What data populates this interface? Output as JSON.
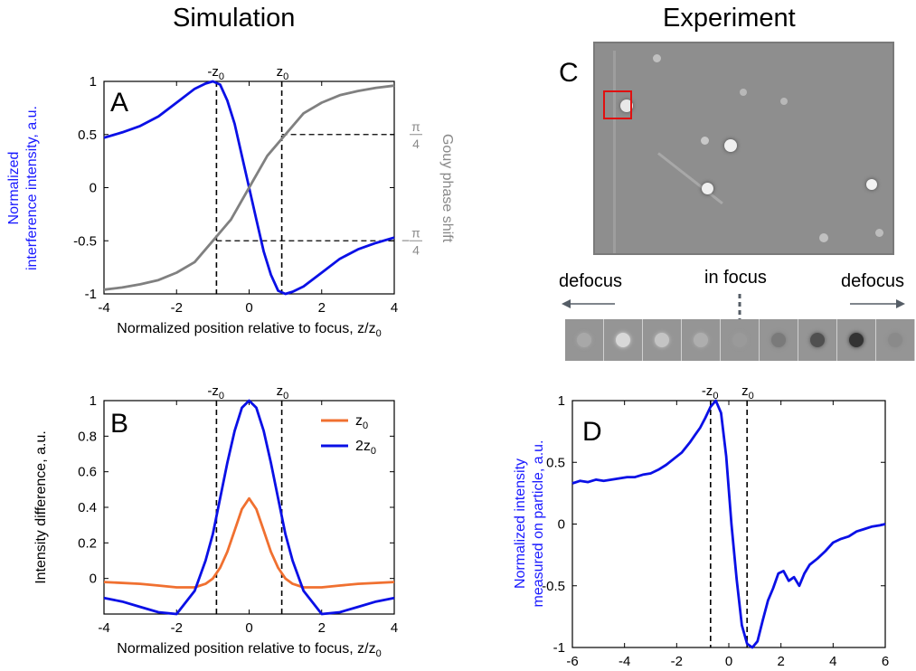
{
  "headings": {
    "simulation": "Simulation",
    "experiment": "Experiment"
  },
  "panels": {
    "a": "A",
    "b": "B",
    "c": "C",
    "d": "D"
  },
  "markers": {
    "neg_z0": "-z",
    "pos_z0": "z",
    "sub0": "0"
  },
  "panel_c": {
    "defocus_left": "defocus",
    "in_focus": "in focus",
    "defocus_right": "defocus",
    "strip_shades": [
      "#a8a8a8",
      "#d8d8d8",
      "#c4c4c4",
      "#aeaeae",
      "#9a9a9a",
      "#7a7a7a",
      "#505050",
      "#333333",
      "#8a8a8a"
    ]
  },
  "chart_data": [
    {
      "panel": "A",
      "type": "line",
      "xlabel": "Normalized position relative to focus, z/z",
      "xlabel_sub": "0",
      "ylabel_line1": "Normalized",
      "ylabel_line2": "interference intensity, a.u.",
      "ylabel_right": "Gouy phase shift",
      "right_ticks": [
        {
          "y": 0.5,
          "num": "π",
          "den": "4",
          "sign": ""
        },
        {
          "y": -0.5,
          "num": "π",
          "den": "4",
          "sign": "−"
        }
      ],
      "xlim": [
        -4,
        4
      ],
      "ylim": [
        -1,
        1
      ],
      "xticks": [
        -4,
        -2,
        0,
        2,
        4
      ],
      "yticks": [
        -1,
        -0.5,
        0,
        0.5,
        1
      ],
      "vlines": [
        -0.9,
        0.9
      ],
      "hlines": [
        {
          "y": 0.5,
          "from": 0.9,
          "to": 4
        },
        {
          "y": -0.5,
          "from": -0.9,
          "to": 4
        }
      ],
      "series": [
        {
          "color": "#0a10e6",
          "x": [
            -4,
            -3.5,
            -3,
            -2.5,
            -2,
            -1.5,
            -1.2,
            -1,
            -0.8,
            -0.6,
            -0.4,
            -0.2,
            0,
            0.2,
            0.4,
            0.6,
            0.8,
            1,
            1.2,
            1.5,
            2,
            2.5,
            3,
            3.5,
            4
          ],
          "y": [
            0.47,
            0.52,
            0.58,
            0.67,
            0.8,
            0.93,
            0.98,
            1.0,
            0.97,
            0.82,
            0.6,
            0.3,
            0.0,
            -0.3,
            -0.6,
            -0.82,
            -0.97,
            -1.0,
            -0.98,
            -0.93,
            -0.8,
            -0.67,
            -0.58,
            -0.52,
            -0.47
          ]
        },
        {
          "color": "#808080",
          "x": [
            -4,
            -3.5,
            -3,
            -2.5,
            -2,
            -1.5,
            -1,
            -0.5,
            0,
            0.5,
            1,
            1.5,
            2,
            2.5,
            3,
            3.5,
            4
          ],
          "y": [
            -0.96,
            -0.94,
            -0.91,
            -0.87,
            -0.8,
            -0.7,
            -0.5,
            -0.3,
            0.0,
            0.3,
            0.5,
            0.7,
            0.8,
            0.87,
            0.91,
            0.94,
            0.96
          ]
        }
      ]
    },
    {
      "panel": "B",
      "type": "line",
      "xlabel": "Normalized position relative to focus, z/z",
      "xlabel_sub": "0",
      "ylabel": "Intensity difference, a.u.",
      "xlim": [
        -4,
        4
      ],
      "ylim": [
        -0.2,
        1
      ],
      "xticks": [
        -4,
        -2,
        0,
        2,
        4
      ],
      "yticks": [
        0,
        0.2,
        0.4,
        0.6,
        0.8,
        1
      ],
      "vlines": [
        -0.9,
        0.9
      ],
      "series": [
        {
          "name": "z",
          "name_sub": "0",
          "color": "#f07030",
          "x": [
            -4,
            -3,
            -2.5,
            -2,
            -1.5,
            -1.2,
            -1,
            -0.8,
            -0.6,
            -0.4,
            -0.2,
            0,
            0.2,
            0.4,
            0.6,
            0.8,
            1,
            1.2,
            1.5,
            2,
            2.5,
            3,
            4
          ],
          "y": [
            -0.02,
            -0.03,
            -0.04,
            -0.05,
            -0.05,
            -0.03,
            0.0,
            0.06,
            0.15,
            0.27,
            0.39,
            0.45,
            0.39,
            0.27,
            0.15,
            0.06,
            0.0,
            -0.03,
            -0.05,
            -0.05,
            -0.04,
            -0.03,
            -0.02
          ]
        },
        {
          "name": "2z",
          "name_sub": "0",
          "color": "#0a10e6",
          "x": [
            -4,
            -3.5,
            -3,
            -2.5,
            -2,
            -1.5,
            -1.2,
            -1,
            -0.8,
            -0.6,
            -0.4,
            -0.2,
            0,
            0.2,
            0.4,
            0.6,
            0.8,
            1,
            1.2,
            1.5,
            2,
            2.5,
            3,
            3.5,
            4
          ],
          "y": [
            -0.11,
            -0.13,
            -0.16,
            -0.19,
            -0.2,
            -0.07,
            0.1,
            0.25,
            0.45,
            0.65,
            0.83,
            0.96,
            1.0,
            0.96,
            0.83,
            0.65,
            0.45,
            0.25,
            0.1,
            -0.07,
            -0.2,
            -0.19,
            -0.16,
            -0.13,
            -0.11
          ]
        }
      ]
    },
    {
      "panel": "D",
      "type": "line",
      "xlabel": "Normalized position relative to focus, z/z",
      "xlabel_sub": "0",
      "ylabel_line1": "Normalized intensity",
      "ylabel_line2": "measured on particle, a.u.",
      "xlim": [
        -6,
        6
      ],
      "ylim": [
        -1,
        1
      ],
      "xticks": [
        -6,
        -4,
        -2,
        0,
        2,
        4,
        6
      ],
      "yticks": [
        -1,
        -0.5,
        0,
        0.5,
        1
      ],
      "vlines": [
        -0.7,
        0.7
      ],
      "series": [
        {
          "color": "#0a10e6",
          "x": [
            -6,
            -5.7,
            -5.4,
            -5.1,
            -4.8,
            -4.5,
            -4.2,
            -3.9,
            -3.6,
            -3.3,
            -3.0,
            -2.7,
            -2.4,
            -2.1,
            -1.8,
            -1.5,
            -1.3,
            -1.1,
            -0.9,
            -0.7,
            -0.5,
            -0.3,
            -0.1,
            0.1,
            0.3,
            0.5,
            0.7,
            0.9,
            1.1,
            1.3,
            1.5,
            1.7,
            1.9,
            2.1,
            2.3,
            2.5,
            2.7,
            2.9,
            3.1,
            3.4,
            3.7,
            4.0,
            4.3,
            4.6,
            4.9,
            5.2,
            5.5,
            5.8,
            6
          ],
          "y": [
            0.33,
            0.35,
            0.34,
            0.36,
            0.35,
            0.36,
            0.37,
            0.38,
            0.38,
            0.4,
            0.41,
            0.44,
            0.48,
            0.53,
            0.58,
            0.66,
            0.72,
            0.78,
            0.86,
            0.95,
            1.0,
            0.9,
            0.55,
            0.0,
            -0.45,
            -0.82,
            -0.97,
            -1.0,
            -0.95,
            -0.78,
            -0.62,
            -0.52,
            -0.4,
            -0.38,
            -0.46,
            -0.43,
            -0.5,
            -0.4,
            -0.33,
            -0.28,
            -0.22,
            -0.15,
            -0.12,
            -0.1,
            -0.06,
            -0.04,
            -0.02,
            -0.01,
            0.0
          ]
        }
      ]
    }
  ]
}
